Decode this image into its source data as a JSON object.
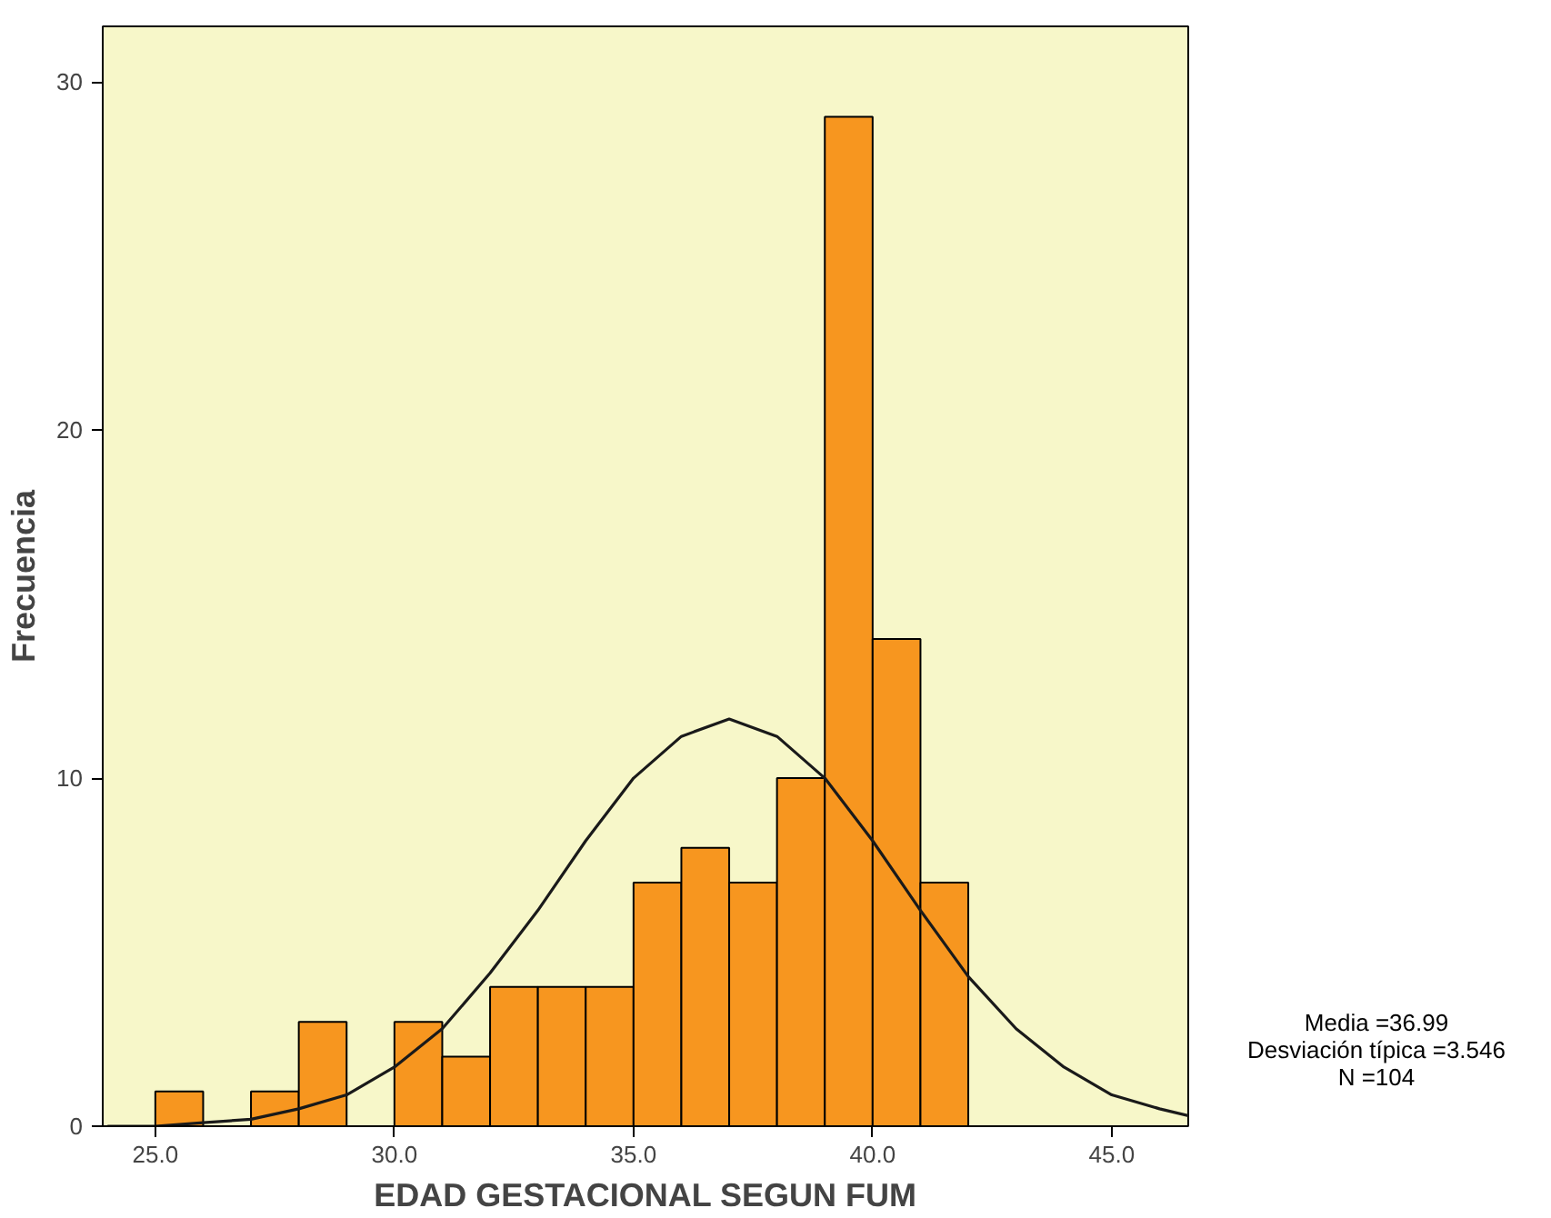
{
  "chart_data": {
    "type": "histogram",
    "xlabel": "EDAD GESTACIONAL SEGUN FUM",
    "ylabel": "Frecuencia",
    "bins": [
      25,
      26,
      27,
      28,
      29,
      30,
      31,
      32,
      33,
      34,
      35,
      36,
      37,
      38,
      39,
      40,
      41,
      42
    ],
    "values": [
      1,
      0,
      1,
      3,
      0,
      3,
      2,
      4,
      4,
      4,
      7,
      8,
      7,
      10,
      29,
      14,
      7
    ],
    "color": "#f7961f",
    "series": [
      {
        "type": "line",
        "color": "#1a1a1a",
        "x": [
          24,
          25,
          26,
          27,
          28,
          29,
          30,
          31,
          32,
          33,
          34,
          35,
          36,
          37,
          38,
          39,
          40,
          41,
          42,
          43,
          44,
          45,
          46,
          46.6
        ],
        "values": [
          0,
          0,
          0.1,
          0.2,
          0.5,
          0.9,
          1.7,
          2.8,
          4.4,
          6.2,
          8.2,
          10.0,
          11.2,
          11.7,
          11.2,
          10.0,
          8.2,
          6.2,
          4.3,
          2.8,
          1.7,
          0.9,
          0.5,
          0.3
        ]
      }
    ],
    "xlim": [
      23.9,
      46.6
    ],
    "ylim": [
      0,
      31.6
    ],
    "xticks": [
      {
        "value": 25,
        "label": "25.0"
      },
      {
        "value": 30,
        "label": "30.0"
      },
      {
        "value": 35,
        "label": "35.0"
      },
      {
        "value": 40,
        "label": "40.0"
      },
      {
        "value": 45,
        "label": "45.0"
      }
    ],
    "yticks": [
      0,
      10,
      20,
      30
    ],
    "grid": false,
    "annotations": [
      "Media =36.99",
      "Desviación típica =3.546",
      "N =104"
    ]
  }
}
